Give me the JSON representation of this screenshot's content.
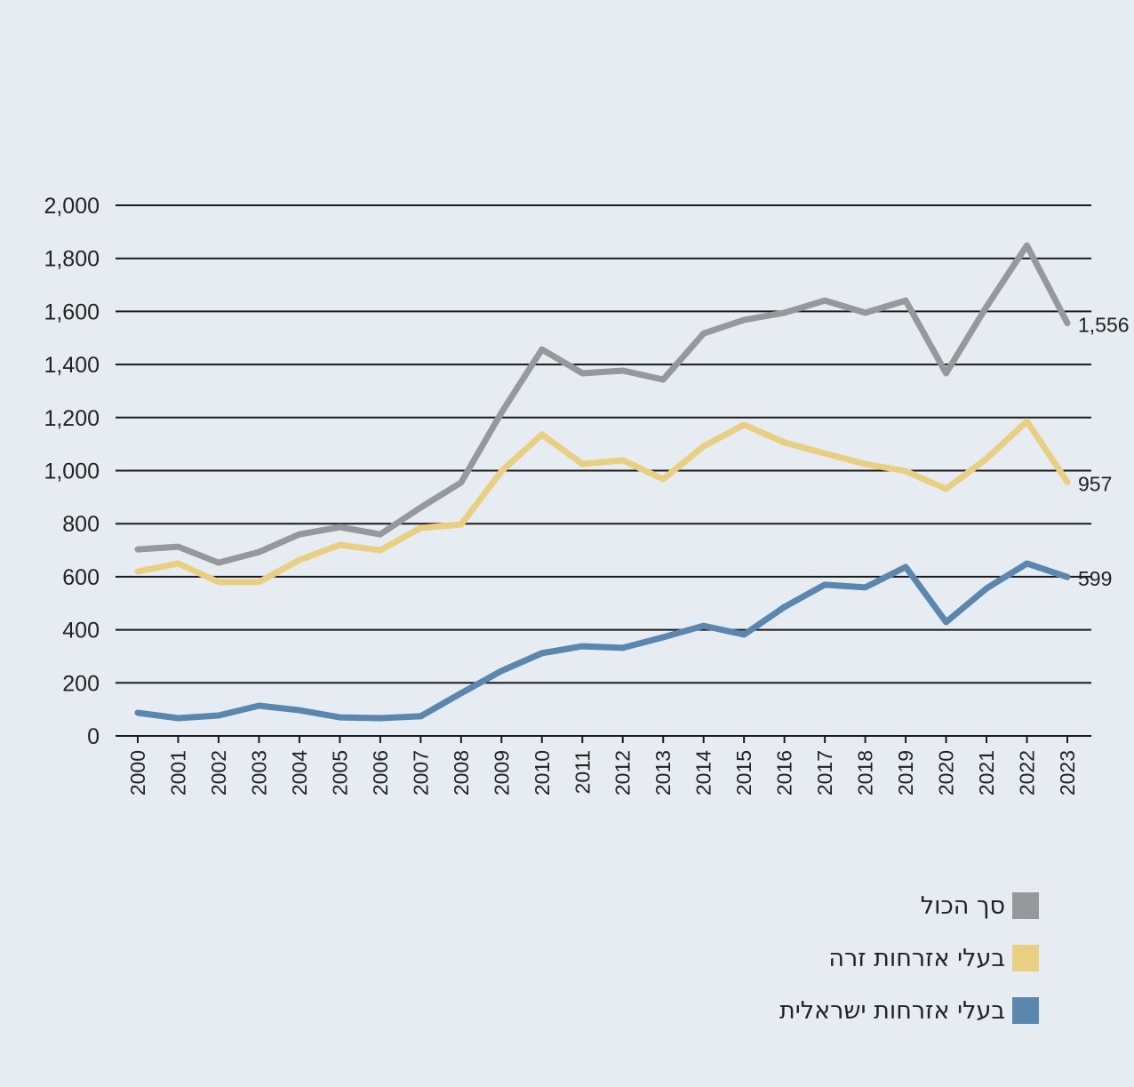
{
  "chart_data": {
    "type": "line",
    "title": "",
    "xlabel": "",
    "ylabel": "",
    "ylim": [
      0,
      2000
    ],
    "yticks": [
      0,
      200,
      400,
      600,
      800,
      1000,
      1200,
      1400,
      1600,
      1800,
      2000
    ],
    "ytick_labels": [
      "0",
      "200",
      "400",
      "600",
      "800",
      "1,000",
      "1,200",
      "1,400",
      "1,600",
      "1,800",
      "2,000"
    ],
    "grid": true,
    "legend_position": "bottom-right",
    "x": [
      "2000",
      "2001",
      "2002",
      "2003",
      "2004",
      "2005",
      "2006",
      "2007",
      "2008",
      "2009",
      "2010",
      "2011",
      "2012",
      "2013",
      "2014",
      "2015",
      "2016",
      "2017",
      "2018",
      "2019",
      "2020",
      "2021",
      "2022",
      "2023"
    ],
    "series": [
      {
        "name": "סך הכול",
        "color": "#97989b",
        "end_label": "1,556",
        "values": [
          703,
          713,
          653,
          693,
          760,
          787,
          760,
          861,
          955,
          1219,
          1457,
          1367,
          1377,
          1343,
          1517,
          1568,
          1595,
          1641,
          1595,
          1641,
          1367,
          1618,
          1849,
          1556
        ]
      },
      {
        "name": "בעלי אזרחות זרה",
        "color": "#e8cf84",
        "end_label": "957",
        "values": [
          620,
          650,
          580,
          580,
          663,
          720,
          700,
          784,
          797,
          998,
          1136,
          1025,
          1039,
          968,
          1092,
          1173,
          1106,
          1065,
          1025,
          998,
          931,
          1045,
          1186,
          957
        ]
      },
      {
        "name": "בעלי אזרחות ישראלית",
        "color": "#5b86ad",
        "end_label": "599",
        "values": [
          87,
          67,
          77,
          114,
          97,
          70,
          67,
          74,
          161,
          245,
          312,
          338,
          332,
          372,
          415,
          382,
          486,
          570,
          560,
          637,
          429,
          556,
          650,
          599
        ]
      }
    ]
  }
}
